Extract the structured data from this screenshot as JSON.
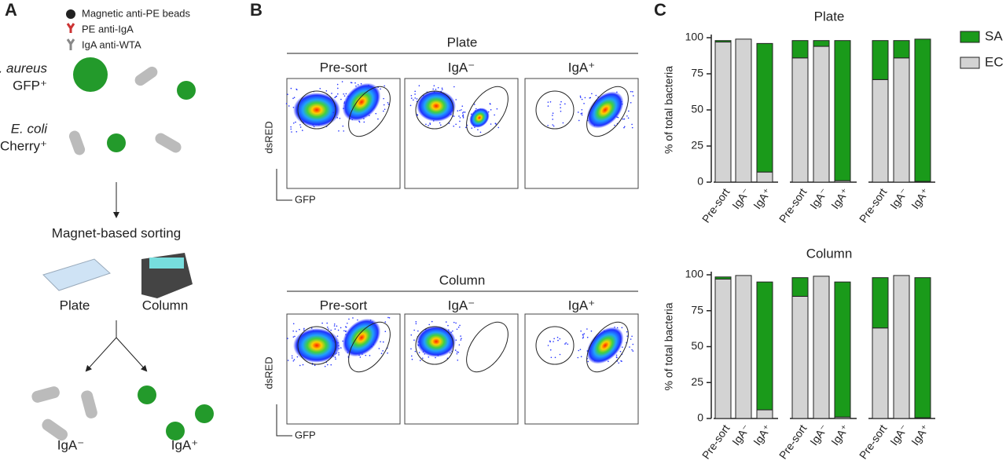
{
  "panel_a": {
    "label": "A",
    "beads": "Magnetic anti-PE beads",
    "pe": "PE anti-IgA",
    "iga": "IgA anti-WTA",
    "s_aureus": "S. aureus",
    "gfp": "GFP⁺",
    "e_coli": "E. coli",
    "mcherry": "mCherry⁺",
    "sorting": "Magnet-based sorting",
    "plate": "Plate",
    "column": "Column",
    "neg": "IgA⁻",
    "pos": "IgA⁺"
  },
  "panel_b": {
    "label": "B",
    "y_axis": "dsRED",
    "x_axis": "GFP",
    "plots": [
      {
        "title": "Plate",
        "columns": [
          "Pre-sort",
          "IgA⁻",
          "IgA⁺"
        ]
      },
      {
        "title": "Column",
        "columns": [
          "Pre-sort",
          "IgA⁻",
          "IgA⁺"
        ]
      }
    ]
  },
  "panel_c": {
    "label": "C"
  },
  "chart_data": [
    {
      "type": "bar",
      "stacked": true,
      "title": "Plate",
      "y_label": "% of total bacteria",
      "categories": [
        "Pre-sort",
        "IgA⁻",
        "IgA⁺",
        "Pre-sort",
        "IgA⁻",
        "IgA⁺",
        "Pre-sort",
        "IgA⁻",
        "IgA⁺"
      ],
      "series": [
        {
          "name": "EC",
          "color": "#d3d3d3",
          "values": [
            97,
            99,
            7,
            86,
            94,
            1,
            71,
            86,
            0.5
          ]
        },
        {
          "name": "SA",
          "color": "#1a9a1a",
          "values": [
            1,
            0,
            89,
            12,
            4,
            97,
            27,
            12,
            98.5
          ]
        }
      ],
      "ylim": [
        0,
        100
      ],
      "yticks": [
        0,
        25,
        50,
        75,
        100
      ],
      "legend": "right"
    },
    {
      "type": "bar",
      "stacked": true,
      "title": "Column",
      "y_label": "% of total bacteria",
      "categories": [
        "Pre-sort",
        "IgA⁻",
        "IgA⁺",
        "Pre-sort",
        "IgA⁻",
        "IgA⁺",
        "Pre-sort",
        "IgA⁻",
        "IgA⁺"
      ],
      "series": [
        {
          "name": "EC",
          "color": "#d3d3d3",
          "values": [
            97,
            99.5,
            6,
            85,
            99,
            1,
            63,
            99.5,
            0.5
          ]
        },
        {
          "name": "SA",
          "color": "#1a9a1a",
          "values": [
            1.5,
            0,
            89,
            13,
            0,
            94,
            35,
            0,
            97.5
          ]
        }
      ],
      "ylim": [
        0,
        100
      ],
      "yticks": [
        0,
        25,
        50,
        75,
        100
      ],
      "legend": false
    }
  ]
}
